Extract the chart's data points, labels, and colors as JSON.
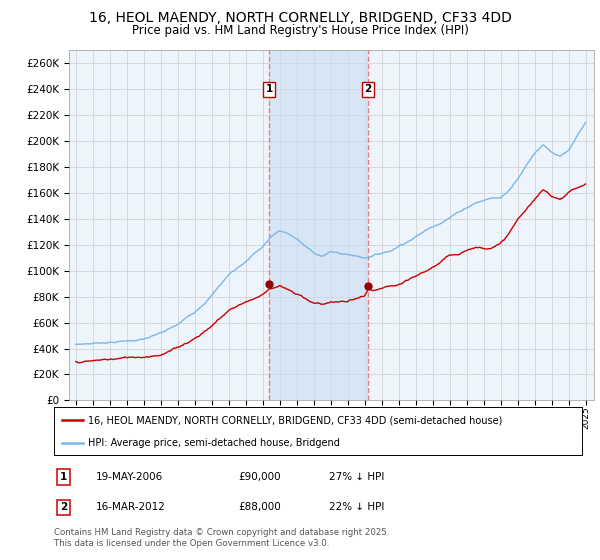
{
  "title": "16, HEOL MAENDY, NORTH CORNELLY, BRIDGEND, CF33 4DD",
  "subtitle": "Price paid vs. HM Land Registry's House Price Index (HPI)",
  "legend_line1": "16, HEOL MAENDY, NORTH CORNELLY, BRIDGEND, CF33 4DD (semi-detached house)",
  "legend_line2": "HPI: Average price, semi-detached house, Bridgend",
  "footer": "Contains HM Land Registry data © Crown copyright and database right 2025.\nThis data is licensed under the Open Government Licence v3.0.",
  "sale1_date": "19-MAY-2006",
  "sale1_price": "£90,000",
  "sale1_hpi": "27% ↓ HPI",
  "sale2_date": "16-MAR-2012",
  "sale2_price": "£88,000",
  "sale2_hpi": "22% ↓ HPI",
  "sale1_price_val": 90000,
  "sale2_price_val": 88000,
  "ylim": [
    0,
    270000
  ],
  "yticks": [
    0,
    20000,
    40000,
    60000,
    80000,
    100000,
    120000,
    140000,
    160000,
    180000,
    200000,
    220000,
    240000,
    260000
  ],
  "xmin": 1994.6,
  "xmax": 2025.5,
  "sale1_x": 2006.38,
  "sale2_x": 2012.21,
  "hpi_color": "#7ab8e8",
  "price_color": "#cc0000",
  "vline_color": "#e88080",
  "shade_color": "#ddeeff",
  "bg_color": "#eef4fc",
  "grid_color": "#cccccc",
  "title_fontsize": 10,
  "subtitle_fontsize": 9,
  "marker_y": 240000
}
